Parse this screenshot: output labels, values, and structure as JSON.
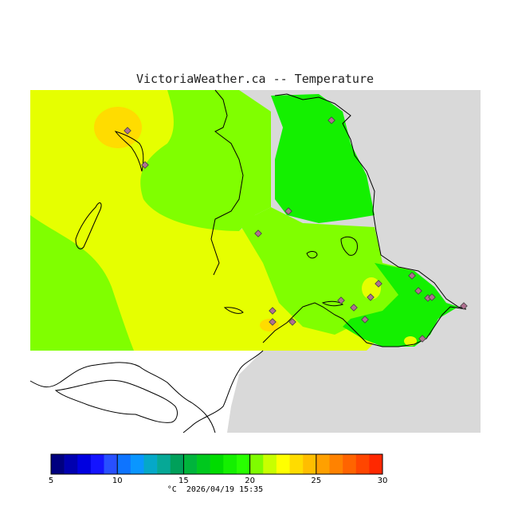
{
  "title": "VictoriaWeather.ca -- Temperature",
  "footer": {
    "unit": "°C",
    "timestamp": "2026/04/19 15:35"
  },
  "colorbar": {
    "min": 5,
    "max": 30,
    "step": 1,
    "tick_labels": [
      "5",
      "10",
      "15",
      "20",
      "25",
      "30"
    ],
    "colors": [
      "#00007f",
      "#0000b0",
      "#0000e0",
      "#1414ff",
      "#2850ff",
      "#0e74ff",
      "#0a96ff",
      "#05a8c8",
      "#06a896",
      "#00a05a",
      "#00b43c",
      "#00c81e",
      "#00dc00",
      "#14f000",
      "#28ff00",
      "#7ffc00",
      "#c8ff00",
      "#ffff00",
      "#ffdc00",
      "#ffbe00",
      "#ffa000",
      "#ff8200",
      "#ff6400",
      "#ff4600",
      "#ff2800"
    ]
  },
  "map": {
    "land_color": "#d9d9d9",
    "outline_color": "#000000",
    "stations_count_note": "",
    "temperature_bands": {
      "warm_core": "#ffdc00",
      "yellow": "#e6ff00",
      "yellow_green": "#c8ff00",
      "light_green": "#80ff00",
      "green": "#28ff00",
      "bright_green": "#14f000"
    }
  }
}
